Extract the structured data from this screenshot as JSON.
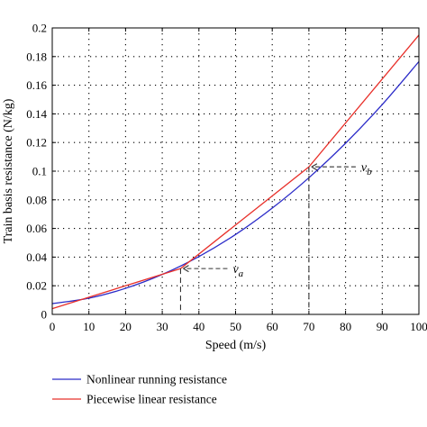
{
  "chart_data": {
    "type": "line",
    "xlabel": "Speed (m/s)",
    "ylabel": "Train basis resistance (N/kg)",
    "xlim": [
      0,
      100
    ],
    "ylim": [
      0,
      0.2
    ],
    "x_ticks": [
      0,
      10,
      20,
      30,
      40,
      50,
      60,
      70,
      80,
      90,
      100
    ],
    "y_ticks": [
      0,
      0.02,
      0.04,
      0.06,
      0.08,
      0.1,
      0.12,
      0.14,
      0.16,
      0.18,
      0.2
    ],
    "grid": true,
    "legend_position": "bottom",
    "series": [
      {
        "name": "Nonlinear running resistance",
        "color": "#2b2bc8",
        "x": [
          0,
          10,
          20,
          30,
          40,
          50,
          60,
          70,
          80,
          90,
          100
        ],
        "y": [
          0.0075,
          0.0113,
          0.0182,
          0.0279,
          0.0404,
          0.0558,
          0.0742,
          0.0954,
          0.1195,
          0.1465,
          0.1765
        ]
      },
      {
        "name": "Piecewise linear resistance",
        "color": "#e8302a",
        "x": [
          0,
          35,
          70,
          100
        ],
        "y": [
          0.004,
          0.032,
          0.103,
          0.195
        ]
      }
    ],
    "annotations": [
      {
        "label": "v",
        "subscript": "a",
        "x": 35,
        "y": 0.032
      },
      {
        "label": "v",
        "subscript": "b",
        "x": 70,
        "y": 0.103
      }
    ]
  }
}
